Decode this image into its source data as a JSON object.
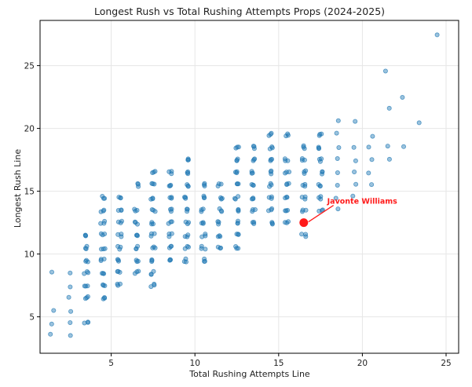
{
  "chart_data": {
    "type": "scatter",
    "title": "Longest Rush vs Total Rushing Attempts Props (2024-2025)",
    "xlabel": "Total Rushing Attempts Line",
    "ylabel": "Longest Rush Line",
    "xlim": [
      0.75,
      25.75
    ],
    "ylim": [
      2.1,
      28.6
    ],
    "xticks": [
      5,
      10,
      15,
      20,
      25
    ],
    "yticks": [
      5,
      10,
      15,
      20,
      25
    ],
    "grid": true,
    "point_color": "#1f77b4",
    "highlight_color": "#ff1a1a",
    "highlight": {
      "x": 16.5,
      "y": 12.5,
      "label": "Javonte Williams",
      "label_x": 17.9,
      "label_y": 14.0
    },
    "columns": [
      {
        "x": 1.5,
        "y": [
          3.5,
          4.5,
          5.5,
          8.5
        ]
      },
      {
        "x": 2.5,
        "y": [
          3.5,
          4.5,
          5.5,
          6.5,
          7.5,
          8.5
        ]
      },
      {
        "x": 3.5,
        "y": [
          4.5,
          6.5,
          7.5,
          8.5,
          9.5,
          10.5,
          11.5
        ]
      },
      {
        "x": 4.5,
        "y": [
          6.5,
          7.5,
          8.5,
          9.5,
          10.5,
          11.5,
          12.5,
          13.5,
          14.5
        ]
      },
      {
        "x": 5.5,
        "y": [
          7.5,
          8.5,
          9.5,
          10.5,
          11.5,
          12.5,
          13.5,
          14.5
        ]
      },
      {
        "x": 6.5,
        "y": [
          8.5,
          9.5,
          10.5,
          11.5,
          12.5,
          13.5,
          15.5
        ]
      },
      {
        "x": 7.5,
        "y": [
          7.5,
          8.5,
          9.5,
          10.5,
          11.5,
          12.5,
          13.5,
          14.5,
          15.5,
          16.5
        ]
      },
      {
        "x": 8.5,
        "y": [
          9.5,
          10.5,
          11.5,
          12.5,
          13.5,
          14.5,
          15.5,
          16.5
        ]
      },
      {
        "x": 9.5,
        "y": [
          9.5,
          10.5,
          11.5,
          12.5,
          13.5,
          14.5,
          15.5,
          16.5,
          17.5
        ]
      },
      {
        "x": 10.5,
        "y": [
          9.5,
          10.5,
          11.5,
          12.5,
          13.5,
          14.5,
          15.5
        ]
      },
      {
        "x": 11.5,
        "y": [
          10.5,
          11.5,
          12.5,
          13.5,
          14.5,
          15.5
        ]
      },
      {
        "x": 12.5,
        "y": [
          10.5,
          11.5,
          12.5,
          13.5,
          14.5,
          15.5,
          16.5,
          17.5,
          18.5
        ]
      },
      {
        "x": 13.5,
        "y": [
          12.5,
          13.5,
          14.5,
          15.5,
          16.5,
          17.5,
          18.5
        ]
      },
      {
        "x": 14.5,
        "y": [
          12.5,
          13.5,
          14.5,
          15.5,
          16.5,
          17.5,
          18.5,
          19.5
        ]
      },
      {
        "x": 15.5,
        "y": [
          12.5,
          13.5,
          14.5,
          15.5,
          16.5,
          17.5,
          19.5
        ]
      },
      {
        "x": 16.5,
        "y": [
          11.5,
          13.5,
          14.5,
          15.5,
          16.5,
          17.5,
          18.5
        ]
      },
      {
        "x": 17.5,
        "y": [
          13.5,
          14.5,
          15.5,
          16.5,
          17.5,
          18.5,
          19.5
        ]
      },
      {
        "x": 18.5,
        "y": [
          13.5,
          14.5,
          15.5,
          16.5,
          17.5,
          18.5,
          19.5,
          20.5
        ]
      },
      {
        "x": 19.5,
        "y": [
          14.5,
          15.5,
          16.5,
          17.5,
          18.5,
          20.5
        ]
      },
      {
        "x": 20.5,
        "y": [
          15.5,
          16.5,
          17.5,
          18.5,
          19.5
        ]
      },
      {
        "x": 21.5,
        "y": [
          17.5,
          18.5,
          21.5,
          24.5
        ]
      },
      {
        "x": 22.5,
        "y": [
          18.5,
          22.5
        ]
      },
      {
        "x": 23.5,
        "y": [
          20.5
        ]
      },
      {
        "x": 24.5,
        "y": [
          27.5
        ]
      }
    ]
  }
}
